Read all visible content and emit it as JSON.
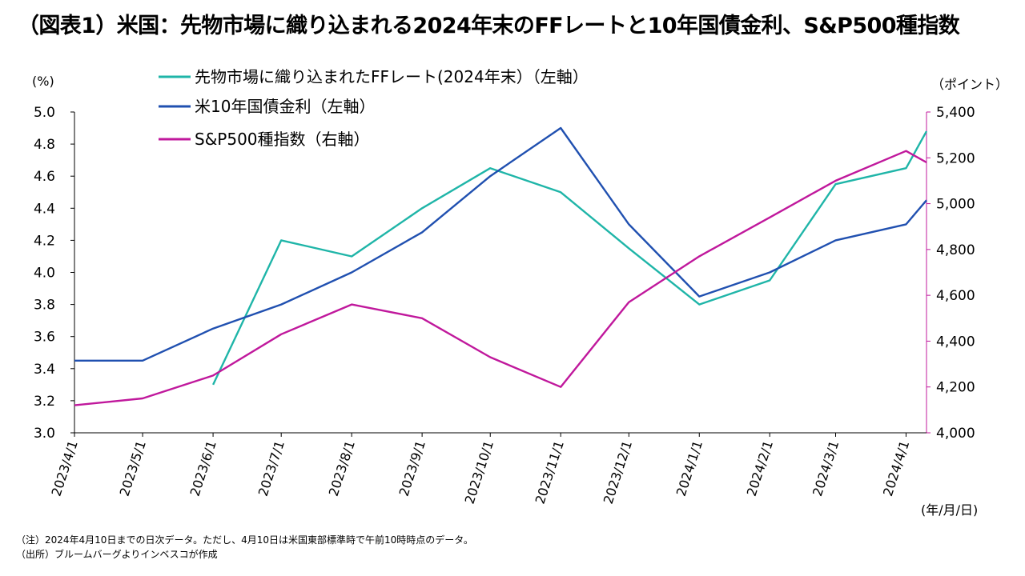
{
  "title": "（図表1）米国：先物市場に織り込まれる2024年末のFFレートと10年国債金利、S&P500種指数",
  "left_unit": "(%)",
  "right_unit": "（ポイント）",
  "x_unit": "(年/月/日)",
  "notes": [
    "（注）2024年4月10日までの日次データ。ただし、4月10日は米国東部標準時で午前10時時点のデータ。",
    "（出所）ブルームバーグよりインベスコが作成"
  ],
  "chart_data": {
    "type": "line",
    "x": [
      "2023/4/1",
      "2023/5/1",
      "2023/6/1",
      "2023/7/1",
      "2023/8/1",
      "2023/9/1",
      "2023/10/1",
      "2023/11/1",
      "2023/12/1",
      "2024/1/1",
      "2024/2/1",
      "2024/3/1",
      "2024/4/1",
      "2024/4/10"
    ],
    "x_ticks": [
      "2023/4/1",
      "2023/5/1",
      "2023/6/1",
      "2023/7/1",
      "2023/8/1",
      "2023/9/1",
      "2023/10/1",
      "2023/11/1",
      "2023/12/1",
      "2024/1/1",
      "2024/2/1",
      "2024/3/1",
      "2024/4/1"
    ],
    "y_left": {
      "min": 3.0,
      "max": 5.0,
      "step": 0.2,
      "ticks": [
        "3.0",
        "3.2",
        "3.4",
        "3.6",
        "3.8",
        "4.0",
        "4.2",
        "4.4",
        "4.6",
        "4.8",
        "5.0"
      ]
    },
    "y_right": {
      "min": 4000,
      "max": 5400,
      "step": 200,
      "ticks": [
        "4,000",
        "4,200",
        "4,400",
        "4,600",
        "4,800",
        "5,000",
        "5,200",
        "5,400"
      ]
    },
    "legend_position": "top-left",
    "grid": false,
    "series": [
      {
        "name": "先物市場に織り込まれたFFレート(2024年末）（左軸）",
        "axis": "left",
        "color": "#1fb5a8",
        "values": [
          null,
          null,
          3.3,
          4.2,
          4.1,
          4.4,
          4.65,
          4.5,
          4.15,
          3.8,
          3.95,
          4.55,
          4.65,
          4.88
        ]
      },
      {
        "name": "米10年国債金利（左軸）",
        "axis": "left",
        "color": "#2050b0",
        "values": [
          3.45,
          3.45,
          3.65,
          3.8,
          4.0,
          4.25,
          4.6,
          4.9,
          4.3,
          3.85,
          4.0,
          4.2,
          4.3,
          4.45
        ]
      },
      {
        "name": "S&P500種指数（右軸）",
        "axis": "right",
        "color": "#c0189c",
        "values": [
          4120,
          4150,
          4250,
          4430,
          4560,
          4500,
          4330,
          4200,
          4570,
          4770,
          4940,
          5100,
          5230,
          5180
        ]
      }
    ]
  }
}
